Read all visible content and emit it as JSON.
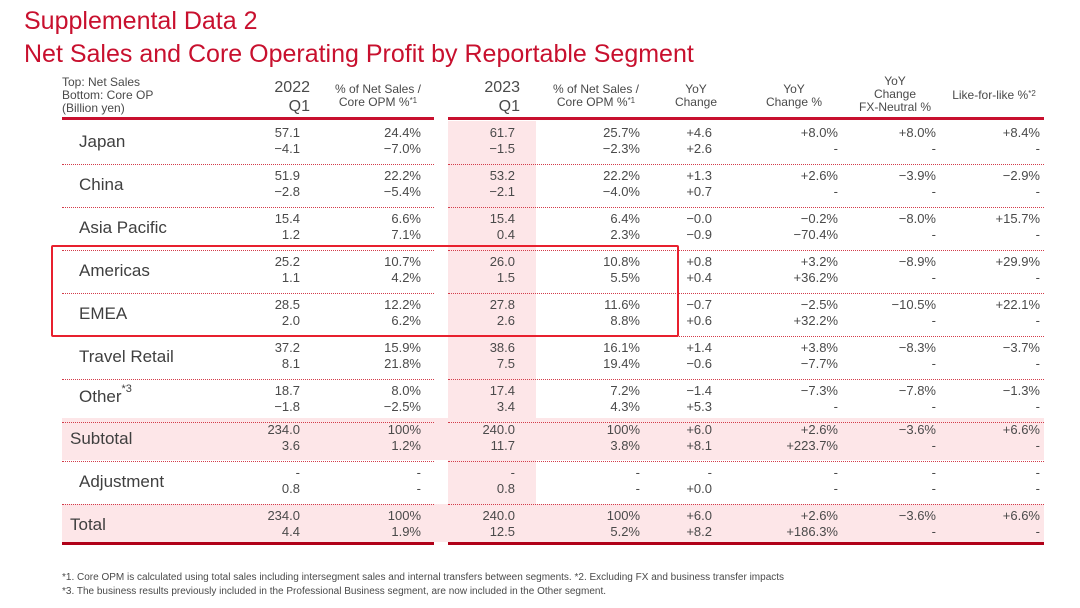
{
  "title_line1": "Supplemental Data 2",
  "title_line2": "Net Sales and Core Operating Profit by Reportable Segment",
  "header": {
    "label_line1": "Top: Net Sales",
    "label_line2": "Bottom: Core OP",
    "label_line3": "(Billion yen)",
    "y2022_year": "2022",
    "y2022_q": "Q1",
    "pct2022_line1": "% of Net Sales /",
    "pct2022_line2": "Core OPM %",
    "pct2022_sup": "*1",
    "y2023_year": "2023",
    "y2023_q": "Q1",
    "pct2023_line1": "% of Net Sales /",
    "pct2023_line2": "Core OPM %",
    "pct2023_sup": "*1",
    "yoy_line1": "YoY",
    "yoy_line2": "Change",
    "yoypct_line1": "YoY",
    "yoypct_line2": "Change %",
    "fx_line1": "YoY",
    "fx_line2": "Change",
    "fx_line3": "FX-Neutral %",
    "lfl": "Like-for-like %",
    "lfl_sup": "*2"
  },
  "rows": [
    {
      "label": "Japan",
      "sup": "",
      "top": [
        "57.1",
        "24.4%",
        "61.7",
        "25.7%",
        "+4.6",
        "+8.0%",
        "+8.0%",
        "+8.4%"
      ],
      "bottom": [
        "−4.1",
        "−7.0%",
        "−1.5",
        "−2.3%",
        "+2.6",
        "-",
        "-",
        "-"
      ]
    },
    {
      "label": "China",
      "sup": "",
      "top": [
        "51.9",
        "22.2%",
        "53.2",
        "22.2%",
        "+1.3",
        "+2.6%",
        "−3.9%",
        "−2.9%"
      ],
      "bottom": [
        "−2.8",
        "−5.4%",
        "−2.1",
        "−4.0%",
        "+0.7",
        "-",
        "-",
        "-"
      ]
    },
    {
      "label": "Asia Pacific",
      "sup": "",
      "top": [
        "15.4",
        "6.6%",
        "15.4",
        "6.4%",
        "−0.0",
        "−0.2%",
        "−8.0%",
        "+15.7%"
      ],
      "bottom": [
        "1.2",
        "7.1%",
        "0.4",
        "2.3%",
        "−0.9",
        "−70.4%",
        "-",
        "-"
      ]
    },
    {
      "label": "Americas",
      "sup": "",
      "top": [
        "25.2",
        "10.7%",
        "26.0",
        "10.8%",
        "+0.8",
        "+3.2%",
        "−8.9%",
        "+29.9%"
      ],
      "bottom": [
        "1.1",
        "4.2%",
        "1.5",
        "5.5%",
        "+0.4",
        "+36.2%",
        "-",
        "-"
      ]
    },
    {
      "label": "EMEA",
      "sup": "",
      "top": [
        "28.5",
        "12.2%",
        "27.8",
        "11.6%",
        "−0.7",
        "−2.5%",
        "−10.5%",
        "+22.1%"
      ],
      "bottom": [
        "2.0",
        "6.2%",
        "2.6",
        "8.8%",
        "+0.6",
        "+32.2%",
        "-",
        "-"
      ]
    },
    {
      "label": "Travel Retail",
      "sup": "",
      "top": [
        "37.2",
        "15.9%",
        "38.6",
        "16.1%",
        "+1.4",
        "+3.8%",
        "−8.3%",
        "−3.7%"
      ],
      "bottom": [
        "8.1",
        "21.8%",
        "7.5",
        "19.4%",
        "−0.6",
        "−7.7%",
        "-",
        "-"
      ]
    },
    {
      "label": "Other",
      "sup": "*3",
      "top": [
        "18.7",
        "8.0%",
        "17.4",
        "7.2%",
        "−1.4",
        "−7.3%",
        "−7.8%",
        "−1.3%"
      ],
      "bottom": [
        "−1.8",
        "−2.5%",
        "3.4",
        "4.3%",
        "+5.3",
        "-",
        "-",
        "-"
      ]
    },
    {
      "label": "Subtotal",
      "sup": "",
      "top": [
        "234.0",
        "100%",
        "240.0",
        "100%",
        "+6.0",
        "+2.6%",
        "−3.6%",
        "+6.6%"
      ],
      "bottom": [
        "3.6",
        "1.2%",
        "11.7",
        "3.8%",
        "+8.1",
        "+223.7%",
        "-",
        "-"
      ]
    },
    {
      "label": "Adjustment",
      "sup": "",
      "top": [
        "-",
        "-",
        "-",
        "-",
        "-",
        "-",
        "-",
        "-"
      ],
      "bottom": [
        "0.8",
        "-",
        "0.8",
        "-",
        "+0.0",
        "-",
        "-",
        "-"
      ]
    },
    {
      "label": "Total",
      "sup": "",
      "top": [
        "234.0",
        "100%",
        "240.0",
        "100%",
        "+6.0",
        "+2.6%",
        "−3.6%",
        "+6.6%"
      ],
      "bottom": [
        "4.4",
        "1.9%",
        "12.5",
        "5.2%",
        "+8.2",
        "+186.3%",
        "-",
        "-"
      ]
    }
  ],
  "highlighted_rows": [
    "Americas",
    "EMEA"
  ],
  "footnotes": {
    "line1": "*1. Core OPM is calculated using total sales including intersegment sales and internal transfers between segments.    *2. Excluding FX and business transfer impacts",
    "line2": "*3. The business results previously included in the Professional Business segment, are now included in the Other segment."
  },
  "colors": {
    "accent": "#c8102e",
    "shade": "#fde6e8",
    "highlight_box": "#e8202e"
  }
}
